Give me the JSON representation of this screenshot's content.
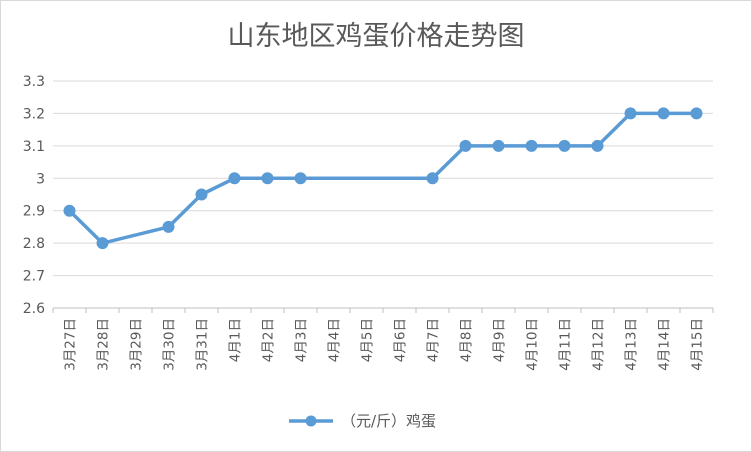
{
  "chart_data": {
    "type": "line",
    "title": "山东地区鸡蛋价格走势图",
    "categories": [
      "3月27日",
      "3月28日",
      "3月29日",
      "3月30日",
      "3月31日",
      "4月1日",
      "4月2日",
      "4月3日",
      "4月4日",
      "4月5日",
      "4月6日",
      "4月7日",
      "4月8日",
      "4月9日",
      "4月10日",
      "4月11日",
      "4月12日",
      "4月13日",
      "4月14日",
      "4月15日"
    ],
    "series": [
      {
        "name": "（元/斤）鸡蛋",
        "values": [
          2.9,
          2.8,
          null,
          2.85,
          2.95,
          3.0,
          3.0,
          3.0,
          null,
          null,
          null,
          3.0,
          3.1,
          3.1,
          3.1,
          3.1,
          3.1,
          3.2,
          3.2,
          3.2
        ],
        "color": "#5b9bd5"
      }
    ],
    "yticks": [
      "2.6",
      "2.7",
      "2.8",
      "2.9",
      "3",
      "3.1",
      "3.2",
      "3.3"
    ],
    "ylim": [
      2.6,
      3.3
    ],
    "xlabel": "",
    "ylabel": "",
    "grid": true,
    "legend": "bottom",
    "gaps": "connect"
  }
}
